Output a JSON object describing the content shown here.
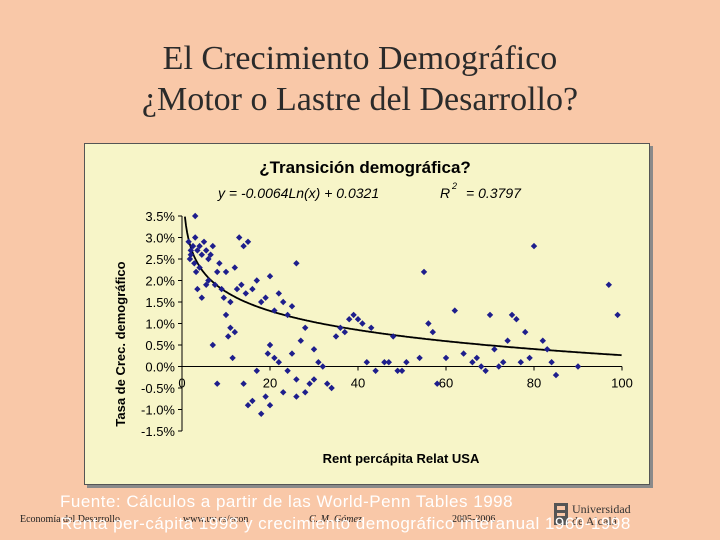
{
  "slide": {
    "title_line1": "El Crecimiento Demográfico",
    "title_line2": "¿Motor o Lastre del Desarrollo?",
    "source_line1": "Fuente: Cálculos a partir de las World-Penn Tables 1998",
    "source_line2": "Renta per-cápita 1998 y crecimiento demográfico interanual 1960-1998",
    "footer_course": "Economía del Desarrollo",
    "footer_url": "www.uv.es/econ",
    "footer_author": "C. M. Gómez",
    "footer_year": "2005-2006",
    "logo_text1": "Universidad",
    "logo_text2": "de Alcalá"
  },
  "colors": {
    "marker": "#1e1e8c",
    "trendline": "#000000",
    "plot_bg": "#f7f5c8"
  },
  "chart_data": {
    "type": "scatter",
    "title": "¿Transición demográfica?",
    "equation": "y = -0.0064Ln(x) + 0.0321",
    "r2_label": "R",
    "r2_exp": "2",
    "r2_value": "= 0.3797",
    "xlabel": "Rent percápita Relat USA",
    "ylabel": "Tasa de Crec. demográfico",
    "xlim": [
      0,
      100
    ],
    "ylim": [
      -0.015,
      0.035
    ],
    "xticks": [
      "0",
      "20",
      "40",
      "60",
      "80",
      "100"
    ],
    "yticks": [
      "3.5%",
      "3.0%",
      "2.5%",
      "2.0%",
      "1.5%",
      "1.0%",
      "0.5%",
      "0.0%",
      "-0.5%",
      "-1.0%",
      "-1.5%"
    ],
    "grid": false,
    "trendline": {
      "a": -0.0064,
      "b": 0.0321
    },
    "points": [
      [
        3,
        0.035
      ],
      [
        1.5,
        0.029
      ],
      [
        2,
        0.027
      ],
      [
        2.5,
        0.028
      ],
      [
        3,
        0.03
      ],
      [
        3.5,
        0.027
      ],
      [
        4,
        0.028
      ],
      [
        4.5,
        0.026
      ],
      [
        5,
        0.029
      ],
      [
        5.5,
        0.027
      ],
      [
        6,
        0.025
      ],
      [
        2,
        0.026
      ],
      [
        2.8,
        0.024
      ],
      [
        3.2,
        0.022
      ],
      [
        1.8,
        0.025
      ],
      [
        4,
        0.023
      ],
      [
        6.5,
        0.026
      ],
      [
        7,
        0.028
      ],
      [
        8,
        0.022
      ],
      [
        3.5,
        0.018
      ],
      [
        4.5,
        0.016
      ],
      [
        5.5,
        0.019
      ],
      [
        6,
        0.02
      ],
      [
        7.5,
        0.019
      ],
      [
        8.5,
        0.024
      ],
      [
        9,
        0.018
      ],
      [
        10,
        0.022
      ],
      [
        9.5,
        0.016
      ],
      [
        11,
        0.015
      ],
      [
        12,
        0.023
      ],
      [
        13,
        0.03
      ],
      [
        14,
        0.028
      ],
      [
        15,
        0.029
      ],
      [
        12.5,
        0.018
      ],
      [
        13.5,
        0.019
      ],
      [
        14.5,
        0.017
      ],
      [
        16,
        0.018
      ],
      [
        17,
        0.02
      ],
      [
        18,
        0.015
      ],
      [
        19,
        0.016
      ],
      [
        20,
        0.021
      ],
      [
        22,
        0.017
      ],
      [
        23,
        0.015
      ],
      [
        24,
        0.012
      ],
      [
        25,
        0.014
      ],
      [
        26,
        0.024
      ],
      [
        21,
        0.013
      ],
      [
        10,
        0.012
      ],
      [
        11,
        0.009
      ],
      [
        12,
        0.008
      ],
      [
        10.5,
        0.007
      ],
      [
        11.5,
        0.002
      ],
      [
        7,
        0.005
      ],
      [
        20,
        0.005
      ],
      [
        21,
        0.002
      ],
      [
        22,
        0.001
      ],
      [
        25,
        0.003
      ],
      [
        24,
        -0.001
      ],
      [
        26,
        -0.003
      ],
      [
        27,
        0.006
      ],
      [
        28,
        0.009
      ],
      [
        30,
        0.004
      ],
      [
        31,
        0.001
      ],
      [
        32,
        0.0
      ],
      [
        30,
        -0.003
      ],
      [
        33,
        -0.004
      ],
      [
        34,
        -0.005
      ],
      [
        35,
        0.007
      ],
      [
        36,
        0.009
      ],
      [
        38,
        0.011
      ],
      [
        39,
        0.012
      ],
      [
        40,
        0.011
      ],
      [
        41,
        0.01
      ],
      [
        42,
        0.001
      ],
      [
        43,
        0.009
      ],
      [
        37,
        0.008
      ],
      [
        44,
        -0.001
      ],
      [
        46,
        0.001
      ],
      [
        47,
        0.001
      ],
      [
        48,
        0.007
      ],
      [
        49,
        -0.001
      ],
      [
        50,
        -0.001
      ],
      [
        51,
        0.001
      ],
      [
        54,
        0.002
      ],
      [
        55,
        0.022
      ],
      [
        56,
        0.01
      ],
      [
        57,
        0.008
      ],
      [
        58,
        -0.004
      ],
      [
        60,
        0.002
      ],
      [
        62,
        0.013
      ],
      [
        64,
        0.003
      ],
      [
        66,
        0.001
      ],
      [
        67,
        0.002
      ],
      [
        68,
        0.0
      ],
      [
        69,
        -0.001
      ],
      [
        70,
        0.012
      ],
      [
        71,
        0.004
      ],
      [
        72,
        0.0
      ],
      [
        73,
        0.001
      ],
      [
        74,
        0.006
      ],
      [
        75,
        0.012
      ],
      [
        76,
        0.011
      ],
      [
        77,
        0.001
      ],
      [
        78,
        0.008
      ],
      [
        79,
        0.002
      ],
      [
        80,
        0.028
      ],
      [
        82,
        0.006
      ],
      [
        83,
        0.004
      ],
      [
        84,
        0.001
      ],
      [
        85,
        -0.002
      ],
      [
        90,
        0.0
      ],
      [
        97,
        0.019
      ],
      [
        99,
        0.012
      ],
      [
        8,
        -0.004
      ],
      [
        14,
        -0.004
      ],
      [
        16,
        -0.008
      ],
      [
        15,
        -0.009
      ],
      [
        18,
        -0.011
      ],
      [
        19,
        -0.007
      ],
      [
        20,
        -0.009
      ],
      [
        23,
        -0.006
      ],
      [
        26,
        -0.007
      ],
      [
        28,
        -0.006
      ],
      [
        29,
        -0.004
      ],
      [
        17,
        -0.001
      ],
      [
        19.5,
        0.003
      ]
    ]
  }
}
